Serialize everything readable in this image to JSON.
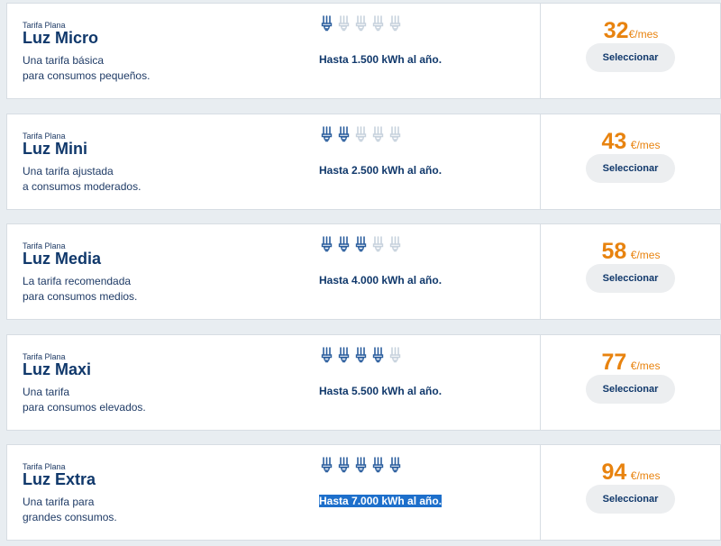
{
  "plans": [
    {
      "kicker": "Tarifa Plana",
      "name": "Luz Micro",
      "desc_line1": "Una tarifa básica",
      "desc_line2": "para consumos pequeños.",
      "bulbs_on": 1,
      "limit": "Hasta 1.500 kWh al año.",
      "price": "32",
      "unit": "€/mes",
      "button": "Seleccionar"
    },
    {
      "kicker": "Tarifa Plana",
      "name": "Luz Mini",
      "desc_line1": "Una tarifa ajustada",
      "desc_line2": "a consumos moderados.",
      "bulbs_on": 2,
      "limit": "Hasta 2.500 kWh al año.",
      "price": "43",
      "unit": "€/mes",
      "button": "Seleccionar"
    },
    {
      "kicker": "Tarifa Plana",
      "name": "Luz Media",
      "desc_line1": "La tarifa recomendada",
      "desc_line2": "para consumos medios.",
      "bulbs_on": 3,
      "limit": "Hasta 4.000 kWh al año.",
      "price": "58",
      "unit": "€/mes",
      "button": "Seleccionar"
    },
    {
      "kicker": "Tarifa Plana",
      "name": "Luz Maxi",
      "desc_line1": "Una tarifa",
      "desc_line2": "para consumos elevados.",
      "bulbs_on": 4,
      "limit": "Hasta 5.500 kWh al año.",
      "price": "77",
      "unit": "€/mes",
      "button": "Seleccionar"
    },
    {
      "kicker": "Tarifa Plana",
      "name": "Luz Extra",
      "desc_line1": "Una tarifa para",
      "desc_line2": "grandes consumos.",
      "bulbs_on": 5,
      "limit": "Hasta 7.000 kWh al año.",
      "price": "94",
      "unit": "€/mes",
      "button": "Seleccionar"
    }
  ],
  "bulbs_total": 5,
  "colors": {
    "accent_price": "#e8830f",
    "title_blue": "#10386b",
    "bulb_on": "#2c5f9e",
    "bulb_off": "#c7d2dd",
    "selection": "#1d6fcb"
  },
  "icons": {
    "bulb": "light-bulb-icon"
  }
}
